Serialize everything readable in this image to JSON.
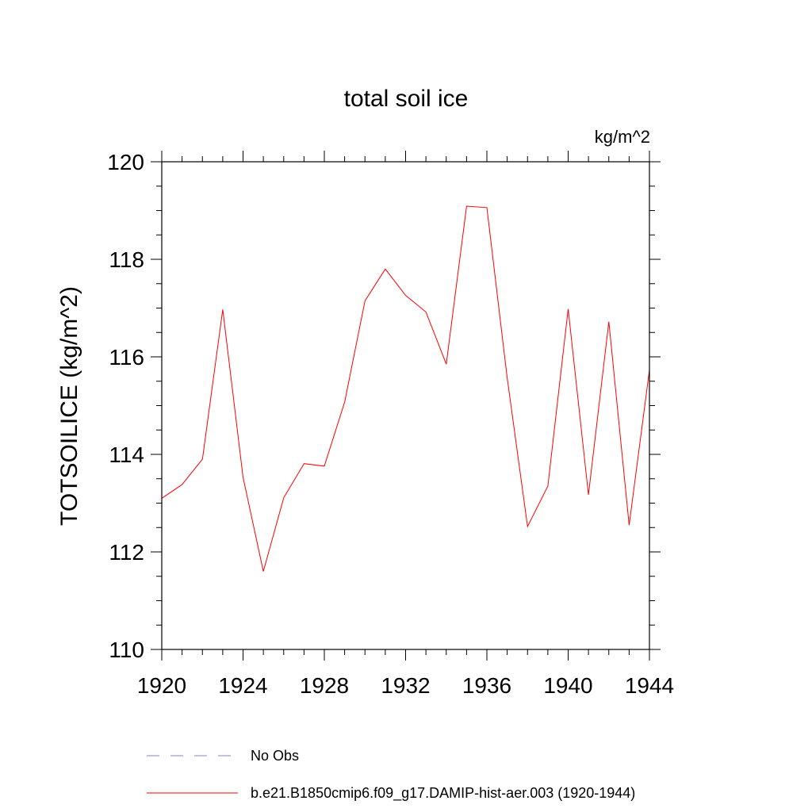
{
  "chart_data": {
    "type": "line",
    "title": "total soil ice",
    "units": "kg/m^2",
    "ylabel": "TOTSOILICE  (kg/m^2)",
    "xlabel": "",
    "xlim": [
      1920,
      1944
    ],
    "ylim": [
      110,
      120
    ],
    "xticks": [
      1920,
      1924,
      1928,
      1932,
      1936,
      1940,
      1944
    ],
    "yticks": [
      110,
      112,
      114,
      116,
      118,
      120
    ],
    "grid": false,
    "legend_position": "bottom",
    "series": [
      {
        "name": "b.e21.B1850cmip6.f09_g17.DAMIP-hist-aer.003 (1920-1944)",
        "color": "#ff0000",
        "style": "solid",
        "x": [
          1920,
          1921,
          1922,
          1923,
          1924,
          1925,
          1926,
          1927,
          1928,
          1929,
          1930,
          1931,
          1932,
          1933,
          1934,
          1935,
          1936,
          1937,
          1938,
          1939,
          1940,
          1941,
          1942,
          1943,
          1944
        ],
        "y": [
          113.1,
          113.38,
          113.9,
          116.97,
          113.53,
          111.6,
          113.11,
          113.81,
          113.76,
          115.07,
          117.15,
          117.8,
          117.26,
          116.92,
          115.85,
          119.09,
          119.06,
          115.57,
          112.52,
          113.35,
          116.98,
          113.17,
          116.72,
          112.55,
          115.73
        ]
      },
      {
        "name": "No Obs",
        "color": "#8080d0",
        "style": "dashed",
        "x": [],
        "y": []
      }
    ]
  }
}
